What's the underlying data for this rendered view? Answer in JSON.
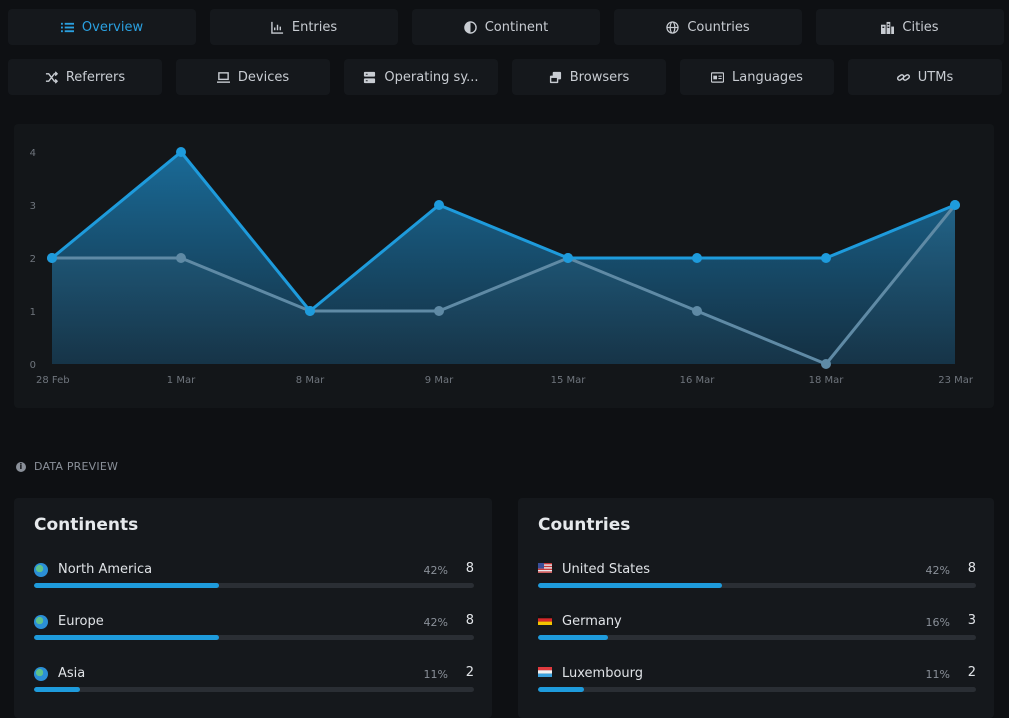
{
  "tabs_row1": [
    {
      "label": "Overview",
      "icon": "list-icon",
      "active": true
    },
    {
      "label": "Entries",
      "icon": "bar-chart-icon"
    },
    {
      "label": "Continent",
      "icon": "globe-half-icon"
    },
    {
      "label": "Countries",
      "icon": "globe-icon"
    },
    {
      "label": "Cities",
      "icon": "buildings-icon"
    }
  ],
  "tabs_row2": [
    {
      "label": "Referrers",
      "icon": "shuffle-icon"
    },
    {
      "label": "Devices",
      "icon": "laptop-icon"
    },
    {
      "label": "Operating sy...",
      "icon": "server-icon"
    },
    {
      "label": "Browsers",
      "icon": "browser-windows-icon"
    },
    {
      "label": "Languages",
      "icon": "language-icon"
    },
    {
      "label": "UTMs",
      "icon": "link-icon"
    }
  ],
  "chart_data": {
    "type": "area",
    "categories": [
      "28 Feb",
      "1 Mar",
      "8 Mar",
      "9 Mar",
      "15 Mar",
      "16 Mar",
      "18 Mar",
      "23 Mar"
    ],
    "series": [
      {
        "values": [
          2,
          4,
          1,
          3,
          2,
          2,
          2,
          3
        ],
        "color": "#1e9bdc"
      },
      {
        "values": [
          2,
          2,
          1,
          1,
          2,
          1,
          0,
          3
        ],
        "color": "#5f8aa5"
      }
    ],
    "yticks": [
      "0",
      "1",
      "2",
      "3",
      "4"
    ],
    "ylim": [
      0,
      4
    ],
    "grid": false
  },
  "preview": {
    "label": "DATA PREVIEW",
    "icon": "info-icon"
  },
  "continents": {
    "title": "Continents",
    "rows": [
      {
        "name": "North America",
        "pct": "42%",
        "count": "8",
        "fraction": 0.42
      },
      {
        "name": "Europe",
        "pct": "42%",
        "count": "8",
        "fraction": 0.42
      },
      {
        "name": "Asia",
        "pct": "11%",
        "count": "2",
        "fraction": 0.105
      }
    ]
  },
  "countries": {
    "title": "Countries",
    "rows": [
      {
        "name": "United States",
        "pct": "42%",
        "count": "8",
        "fraction": 0.42,
        "flag": "us-flag-icon"
      },
      {
        "name": "Germany",
        "pct": "16%",
        "count": "3",
        "fraction": 0.16,
        "flag": "germany-flag-icon"
      },
      {
        "name": "Luxembourg",
        "pct": "11%",
        "count": "2",
        "fraction": 0.105,
        "flag": "luxembourg-flag-icon"
      }
    ]
  }
}
